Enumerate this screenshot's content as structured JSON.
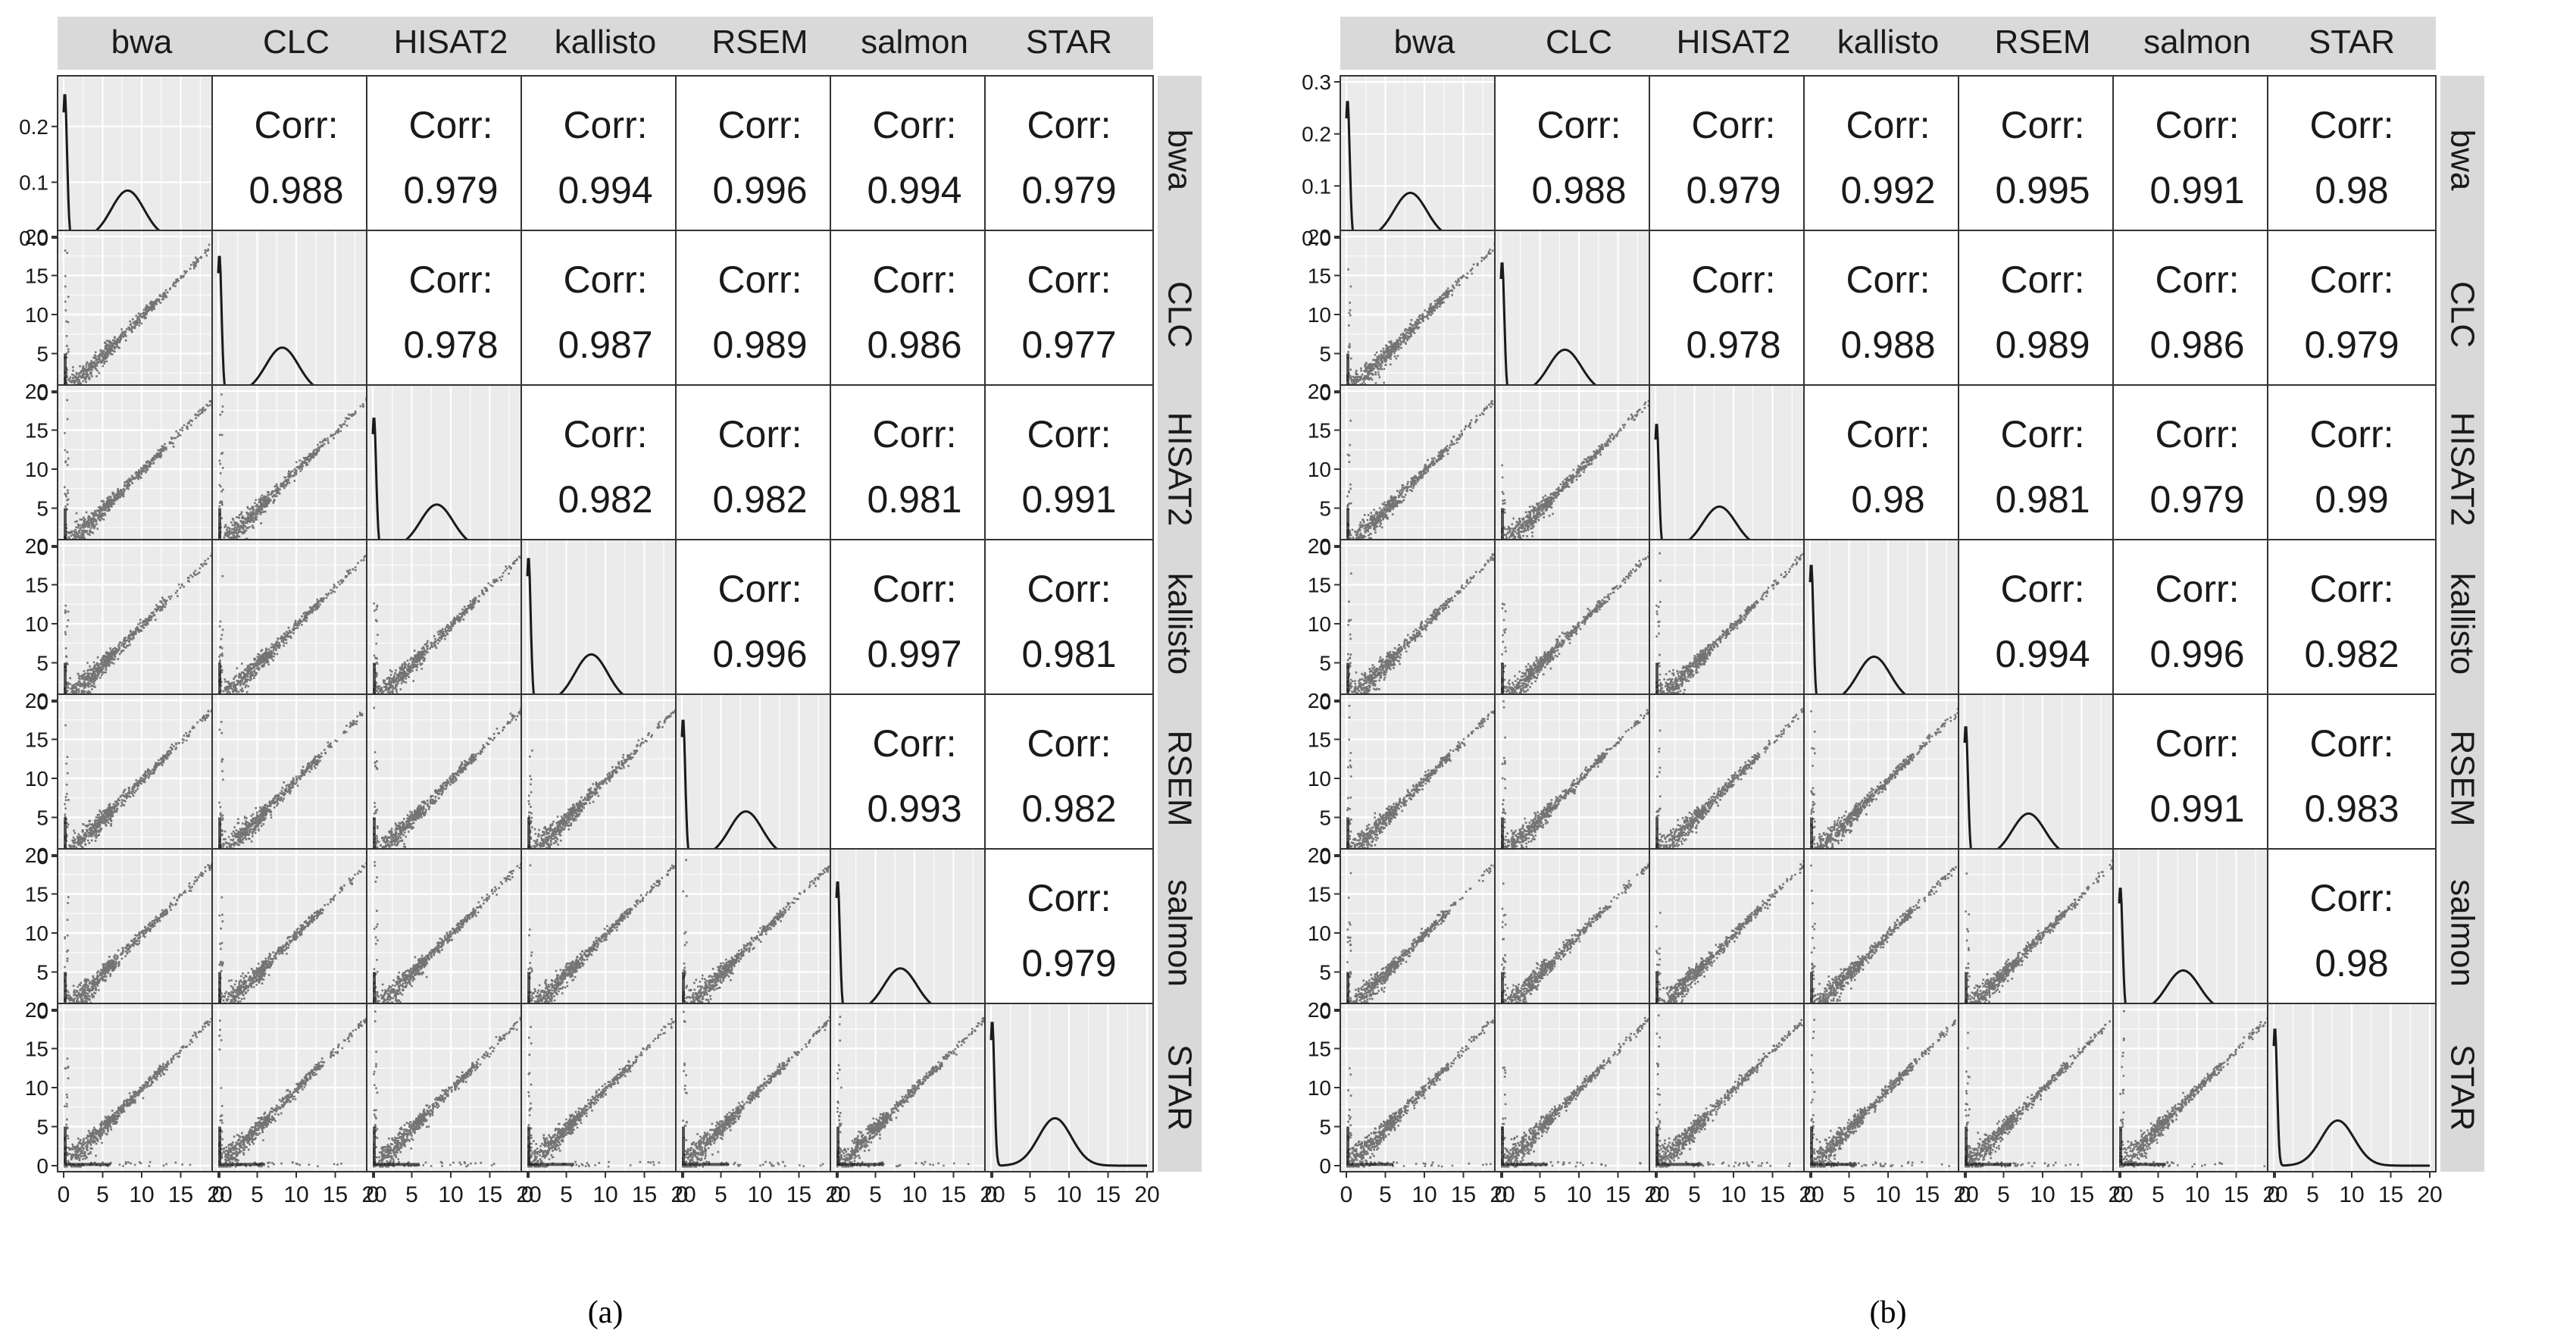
{
  "chart_data": [
    {
      "type": "scatter-matrix",
      "panel_caption": "(a)",
      "variables": [
        "bwa",
        "CLC",
        "HISAT2",
        "kallisto",
        "RSEM",
        "salmon",
        "STAR"
      ],
      "axis_ticks": [
        "0",
        "5",
        "10",
        "15",
        "20"
      ],
      "xlim": [
        0,
        20
      ],
      "ylim": [
        0,
        20
      ],
      "density_ylim": [
        0,
        0.28
      ],
      "density_ticks": [
        "0.0",
        "0.1",
        "0.2"
      ],
      "density_tick_values": [
        0,
        0.1,
        0.2
      ],
      "corr_label": "Corr:",
      "correlations": [
        [
          "bwa",
          "CLC",
          "0.988"
        ],
        [
          "bwa",
          "HISAT2",
          "0.979"
        ],
        [
          "bwa",
          "kallisto",
          "0.994"
        ],
        [
          "bwa",
          "RSEM",
          "0.996"
        ],
        [
          "bwa",
          "salmon",
          "0.994"
        ],
        [
          "bwa",
          "STAR",
          "0.979"
        ],
        [
          "CLC",
          "HISAT2",
          "0.978"
        ],
        [
          "CLC",
          "kallisto",
          "0.987"
        ],
        [
          "CLC",
          "RSEM",
          "0.989"
        ],
        [
          "CLC",
          "salmon",
          "0.986"
        ],
        [
          "CLC",
          "STAR",
          "0.977"
        ],
        [
          "HISAT2",
          "kallisto",
          "0.982"
        ],
        [
          "HISAT2",
          "RSEM",
          "0.982"
        ],
        [
          "HISAT2",
          "salmon",
          "0.981"
        ],
        [
          "HISAT2",
          "STAR",
          "0.991"
        ],
        [
          "kallisto",
          "RSEM",
          "0.996"
        ],
        [
          "kallisto",
          "salmon",
          "0.997"
        ],
        [
          "kallisto",
          "STAR",
          "0.981"
        ],
        [
          "RSEM",
          "salmon",
          "0.993"
        ],
        [
          "RSEM",
          "STAR",
          "0.982"
        ],
        [
          "salmon",
          "STAR",
          "0.979"
        ]
      ]
    },
    {
      "type": "scatter-matrix",
      "panel_caption": "(b)",
      "variables": [
        "bwa",
        "CLC",
        "HISAT2",
        "kallisto",
        "RSEM",
        "salmon",
        "STAR"
      ],
      "axis_ticks": [
        "0",
        "5",
        "10",
        "15",
        "20"
      ],
      "xlim": [
        0,
        20
      ],
      "ylim": [
        0,
        20
      ],
      "density_ylim": [
        0,
        0.3
      ],
      "density_ticks": [
        "0.0",
        "0.1",
        "0.2",
        "0.3"
      ],
      "density_tick_values": [
        0,
        0.1,
        0.2,
        0.3
      ],
      "corr_label": "Corr:",
      "correlations": [
        [
          "bwa",
          "CLC",
          "0.988"
        ],
        [
          "bwa",
          "HISAT2",
          "0.979"
        ],
        [
          "bwa",
          "kallisto",
          "0.992"
        ],
        [
          "bwa",
          "RSEM",
          "0.995"
        ],
        [
          "bwa",
          "salmon",
          "0.991"
        ],
        [
          "bwa",
          "STAR",
          "0.98"
        ],
        [
          "CLC",
          "HISAT2",
          "0.978"
        ],
        [
          "CLC",
          "kallisto",
          "0.988"
        ],
        [
          "CLC",
          "RSEM",
          "0.989"
        ],
        [
          "CLC",
          "salmon",
          "0.986"
        ],
        [
          "CLC",
          "STAR",
          "0.979"
        ],
        [
          "HISAT2",
          "kallisto",
          "0.98"
        ],
        [
          "HISAT2",
          "RSEM",
          "0.981"
        ],
        [
          "HISAT2",
          "salmon",
          "0.979"
        ],
        [
          "HISAT2",
          "STAR",
          "0.99"
        ],
        [
          "kallisto",
          "RSEM",
          "0.994"
        ],
        [
          "kallisto",
          "salmon",
          "0.996"
        ],
        [
          "kallisto",
          "STAR",
          "0.982"
        ],
        [
          "RSEM",
          "salmon",
          "0.991"
        ],
        [
          "RSEM",
          "STAR",
          "0.983"
        ],
        [
          "salmon",
          "STAR",
          "0.98"
        ]
      ]
    }
  ],
  "colors": {
    "strip_fill": "#d9d9d9",
    "panel_bg": "#ebebeb",
    "grid": "#ffffff",
    "ink": "#1a1a1a",
    "point": "#111111"
  }
}
